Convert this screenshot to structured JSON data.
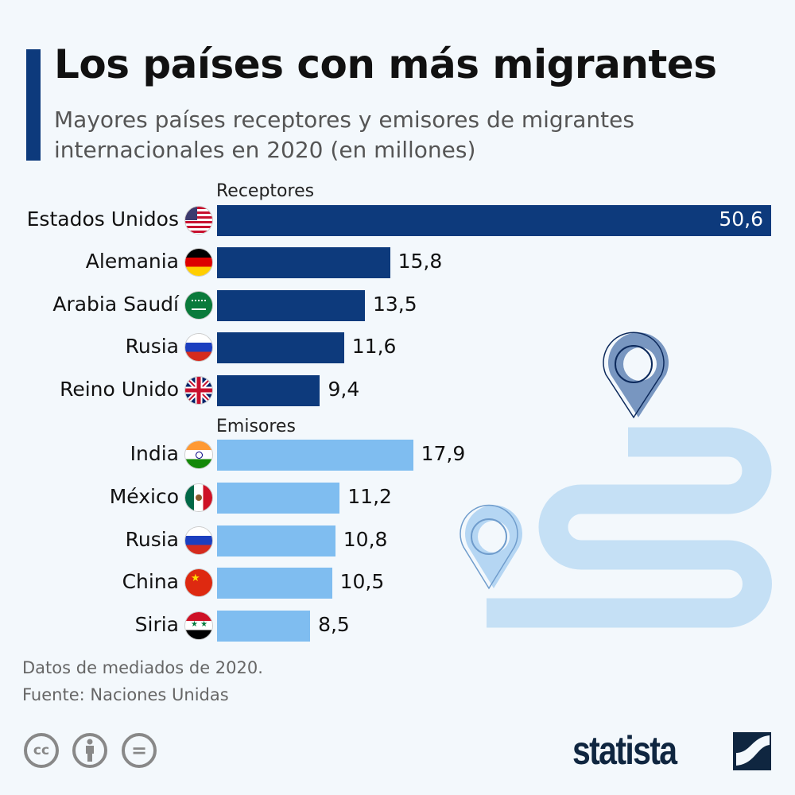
{
  "header": {
    "title": "Los países con más migrantes",
    "subtitle": "Mayores países receptores y emisores de migrantes internacionales en 2020 (en millones)"
  },
  "chart_data": {
    "type": "bar",
    "orientation": "horizontal",
    "groups": [
      {
        "name": "Receptores",
        "color": "#0d3a7c",
        "categories": [
          "Estados Unidos",
          "Alemania",
          "Arabia Saudí",
          "Rusia",
          "Reino Unido"
        ],
        "values": [
          50.6,
          15.8,
          13.5,
          11.6,
          9.4
        ],
        "labels": [
          "50,6",
          "15,8",
          "13,5",
          "11,6",
          "9,4"
        ],
        "flags": [
          "us",
          "de",
          "sa",
          "ru",
          "gb"
        ]
      },
      {
        "name": "Emisores",
        "color": "#7fbdf0",
        "categories": [
          "India",
          "México",
          "Rusia",
          "China",
          "Siria"
        ],
        "values": [
          17.9,
          11.2,
          10.8,
          10.5,
          8.5
        ],
        "labels": [
          "17,9",
          "11,2",
          "10,8",
          "10,5",
          "8,5"
        ],
        "flags": [
          "in",
          "mx",
          "ru",
          "cn",
          "sy"
        ]
      }
    ],
    "xlim": [
      0,
      50.6
    ],
    "grid": false
  },
  "footer": {
    "note": "Datos de mediados de 2020.",
    "source": "Fuente: Naciones Unidas",
    "license_icons": [
      "cc-icon",
      "by-icon",
      "nd-icon"
    ],
    "cc_text": "cc",
    "nd_text": "=",
    "brand": "statista"
  }
}
